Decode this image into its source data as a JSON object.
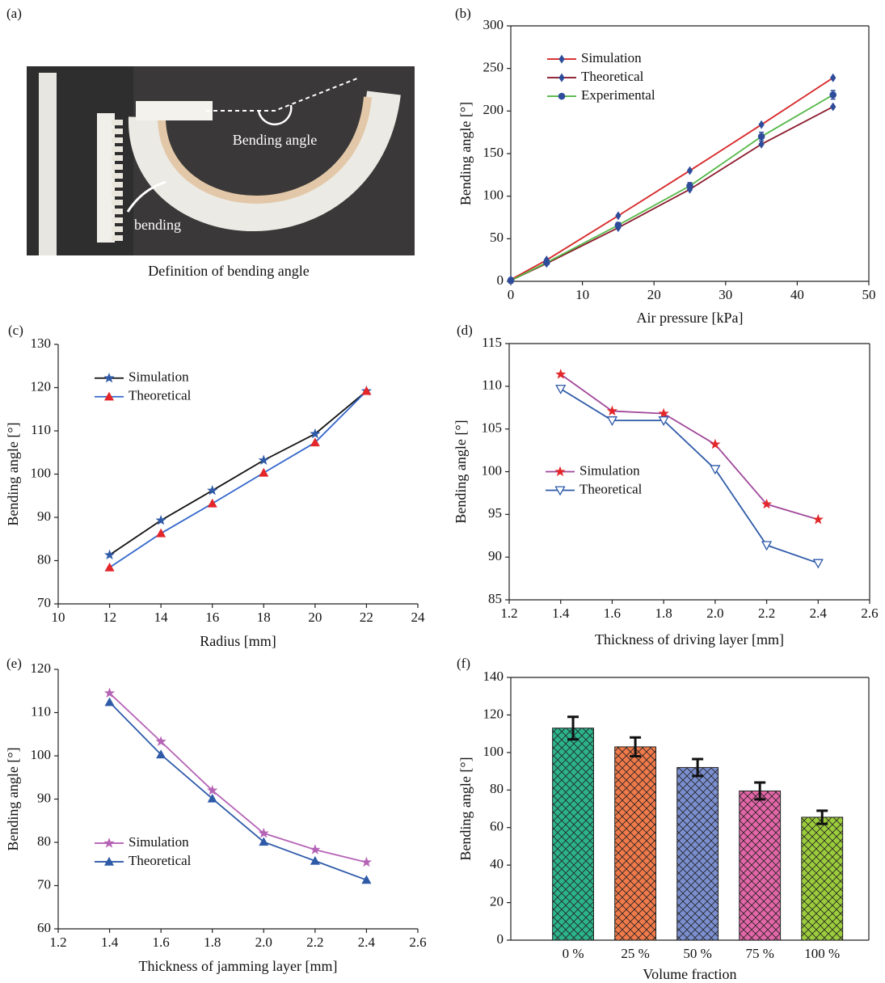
{
  "chart_data": [
    {
      "type": "image",
      "label": "(a)",
      "caption": "Definition of bending angle",
      "annotations": [
        "Bending angle",
        "bending"
      ]
    },
    {
      "type": "line",
      "label": "(b)",
      "x_label": "Air pressure [kPa]",
      "y_label": "Bending angle [°]",
      "x": [
        0,
        5,
        15,
        25,
        35,
        45
      ],
      "xlim": [
        0,
        50
      ],
      "xticks": [
        0,
        10,
        20,
        30,
        40,
        50
      ],
      "ylim": [
        0,
        300
      ],
      "yticks": [
        0,
        50,
        100,
        150,
        200,
        250,
        300
      ],
      "legend": "upper left",
      "frame": true,
      "series": [
        {
          "name": "Simulation",
          "color": "#d62728",
          "marker": "diamond",
          "marker_color": "#2e4c9a",
          "values": [
            2,
            25,
            77,
            130,
            184,
            239
          ]
        },
        {
          "name": "Theoretical",
          "color": "#8b1a2b",
          "marker": "diamond",
          "marker_color": "#2e4c9a",
          "values": [
            1,
            21,
            63,
            108,
            161,
            205
          ]
        },
        {
          "name": "Experimental",
          "color": "#55b848",
          "marker": "circle",
          "marker_color": "#2e4c9a",
          "values": [
            1,
            22,
            66,
            112,
            170,
            219
          ],
          "errors": [
            3,
            2,
            3,
            4,
            5,
            5
          ]
        }
      ]
    },
    {
      "type": "line",
      "label": "(c)",
      "x_label": "Radius [mm]",
      "y_label": "Bending angle [°]",
      "x": [
        12,
        14,
        16,
        18,
        20,
        22
      ],
      "xlim": [
        10,
        24
      ],
      "xticks": [
        10,
        12,
        14,
        16,
        18,
        20,
        22,
        24
      ],
      "ylim": [
        70,
        130
      ],
      "yticks": [
        70,
        80,
        90,
        100,
        110,
        120,
        130
      ],
      "legend": "upper left",
      "frame": false,
      "series": [
        {
          "name": "Simulation",
          "color": "#111111",
          "marker": "star",
          "marker_color": "#2e5aa8",
          "values": [
            81.3,
            89.3,
            96.2,
            103.2,
            109.3,
            119.2
          ]
        },
        {
          "name": "Theoretical",
          "color": "#3366cc",
          "marker": "triangle",
          "marker_color": "#e3262a",
          "values": [
            78.4,
            86.3,
            93.2,
            100.3,
            107.3,
            119.2
          ]
        }
      ]
    },
    {
      "type": "line",
      "label": "(d)",
      "x_label": "Thickness of driving layer [mm]",
      "y_label": "Bending angle [°]",
      "x": [
        1.4,
        1.6,
        1.8,
        2.0,
        2.2,
        2.4
      ],
      "xlim": [
        1.2,
        2.6
      ],
      "xticks": [
        1.2,
        1.4,
        1.6,
        1.8,
        {
          "value": 2,
          "label": "2.0"
        },
        2.2,
        2.4,
        2.6
      ],
      "ylim": [
        85,
        115
      ],
      "yticks": [
        85,
        90,
        95,
        100,
        105,
        110,
        115
      ],
      "legend": "center left",
      "frame": true,
      "series": [
        {
          "name": "Simulation",
          "color": "#a0489a",
          "marker": "star",
          "marker_color": "#e3262a",
          "values": [
            111.4,
            107.1,
            106.8,
            103.2,
            96.2,
            94.4
          ]
        },
        {
          "name": "Theoretical",
          "color": "#2e5aa8",
          "marker": "triangle-open",
          "marker_color": "#2e5aa8",
          "values": [
            109.7,
            106.0,
            106.0,
            100.3,
            91.4,
            89.3
          ]
        }
      ]
    },
    {
      "type": "line",
      "label": "(e)",
      "x_label": "Thickness of jamming layer [mm]",
      "y_label": "Bending angle [°]",
      "x": [
        1.4,
        1.6,
        1.8,
        2.0,
        2.2,
        2.4
      ],
      "xlim": [
        1.2,
        2.6
      ],
      "xticks": [
        1.2,
        1.4,
        1.6,
        1.8,
        {
          "value": 2,
          "label": "2.0"
        },
        2.2,
        2.4,
        2.6
      ],
      "ylim": [
        60,
        120
      ],
      "yticks": [
        60,
        70,
        80,
        90,
        100,
        110,
        120
      ],
      "legend": "lower left",
      "frame": false,
      "series": [
        {
          "name": "Simulation",
          "color": "#b563b5",
          "marker": "star",
          "marker_color": "#b563b5",
          "values": [
            114.5,
            103.3,
            92.0,
            82.1,
            78.3,
            75.4
          ]
        },
        {
          "name": "Theoretical",
          "color": "#2e5aa8",
          "marker": "triangle",
          "marker_color": "#2e5aa8",
          "values": [
            112.4,
            100.3,
            90.1,
            80.1,
            75.7,
            71.3
          ]
        }
      ]
    },
    {
      "type": "bar",
      "label": "(f)",
      "x_label": "Volume fraction",
      "y_label": "Bending angle [°]",
      "categories": [
        "0 %",
        "25 %",
        "50 %",
        "75 %",
        "100 %"
      ],
      "values": [
        113,
        103,
        92,
        79.5,
        65.5
      ],
      "errors": [
        6,
        5,
        4.5,
        4.5,
        3.5
      ],
      "colors": [
        "#2bb38a",
        "#f07a4a",
        "#7b8fd0",
        "#e266a8",
        "#9ccc3c"
      ],
      "ylim": [
        0,
        140
      ],
      "yticks": [
        0,
        20,
        40,
        60,
        80,
        100,
        120,
        140
      ],
      "frame": true
    }
  ]
}
